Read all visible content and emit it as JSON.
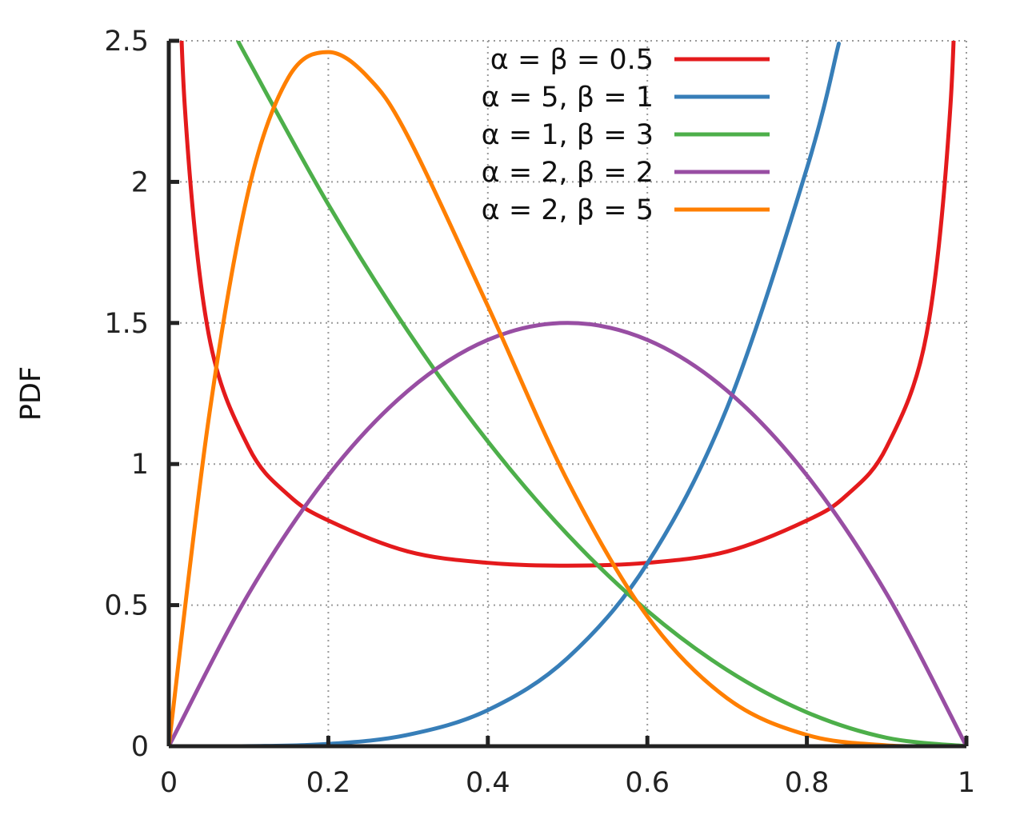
{
  "chart_data": {
    "type": "line",
    "title": "",
    "xlabel": "",
    "ylabel": "PDF",
    "xlim": [
      0,
      1
    ],
    "ylim": [
      0,
      2.5
    ],
    "grid": true,
    "legend_position": "top-right",
    "x_ticks": [
      {
        "value": 0,
        "label": "0"
      },
      {
        "value": 0.2,
        "label": "0.2"
      },
      {
        "value": 0.4,
        "label": "0.4"
      },
      {
        "value": 0.6,
        "label": "0.6"
      },
      {
        "value": 0.8,
        "label": "0.8"
      },
      {
        "value": 1,
        "label": "1"
      }
    ],
    "y_ticks": [
      {
        "value": 0,
        "label": "0"
      },
      {
        "value": 0.5,
        "label": "0.5"
      },
      {
        "value": 1,
        "label": "1"
      },
      {
        "value": 1.5,
        "label": "1.5"
      },
      {
        "value": 2,
        "label": "2"
      },
      {
        "value": 2.5,
        "label": "2.5"
      }
    ],
    "series": [
      {
        "name": "α = β = 0.5",
        "color": "#e41a1c",
        "x": [
          0.01,
          0.02,
          0.05,
          0.1,
          0.15,
          0.2,
          0.3,
          0.4,
          0.5,
          0.6,
          0.7,
          0.8,
          0.85,
          0.9,
          0.95,
          0.98,
          0.99
        ],
        "y": [
          3.2,
          2.27,
          1.46,
          1.06,
          0.89,
          0.8,
          0.69,
          0.65,
          0.64,
          0.65,
          0.69,
          0.8,
          0.89,
          1.06,
          1.46,
          2.27,
          3.2
        ]
      },
      {
        "name": "α = 5, β = 1",
        "color": "#377eb8",
        "x": [
          0,
          0.1,
          0.2,
          0.3,
          0.4,
          0.5,
          0.6,
          0.7,
          0.8,
          0.84
        ],
        "y": [
          0,
          0.0005,
          0.008,
          0.0405,
          0.128,
          0.3125,
          0.648,
          1.2,
          2.048,
          2.49
        ]
      },
      {
        "name": "α = 1, β = 3",
        "color": "#4daf4a",
        "x": [
          0.087,
          0.1,
          0.2,
          0.3,
          0.4,
          0.5,
          0.6,
          0.7,
          0.8,
          0.9,
          1
        ],
        "y": [
          2.5,
          2.43,
          1.92,
          1.47,
          1.08,
          0.75,
          0.48,
          0.27,
          0.12,
          0.03,
          0
        ]
      },
      {
        "name": "α = 2, β = 2",
        "color": "#984ea3",
        "x": [
          0,
          0.1,
          0.2,
          0.3,
          0.4,
          0.5,
          0.6,
          0.7,
          0.8,
          0.9,
          1
        ],
        "y": [
          0,
          0.54,
          0.96,
          1.26,
          1.44,
          1.5,
          1.44,
          1.26,
          0.96,
          0.54,
          0
        ]
      },
      {
        "name": "α = 2, β = 5",
        "color": "#ff7f00",
        "x": [
          0,
          0.05,
          0.1,
          0.15,
          0.2,
          0.25,
          0.3,
          0.4,
          0.5,
          0.6,
          0.7,
          0.8,
          0.9,
          1
        ],
        "y": [
          0,
          1.16,
          1.97,
          2.37,
          2.46,
          2.37,
          2.16,
          1.56,
          0.94,
          0.46,
          0.17,
          0.04,
          0.003,
          0
        ]
      }
    ]
  }
}
